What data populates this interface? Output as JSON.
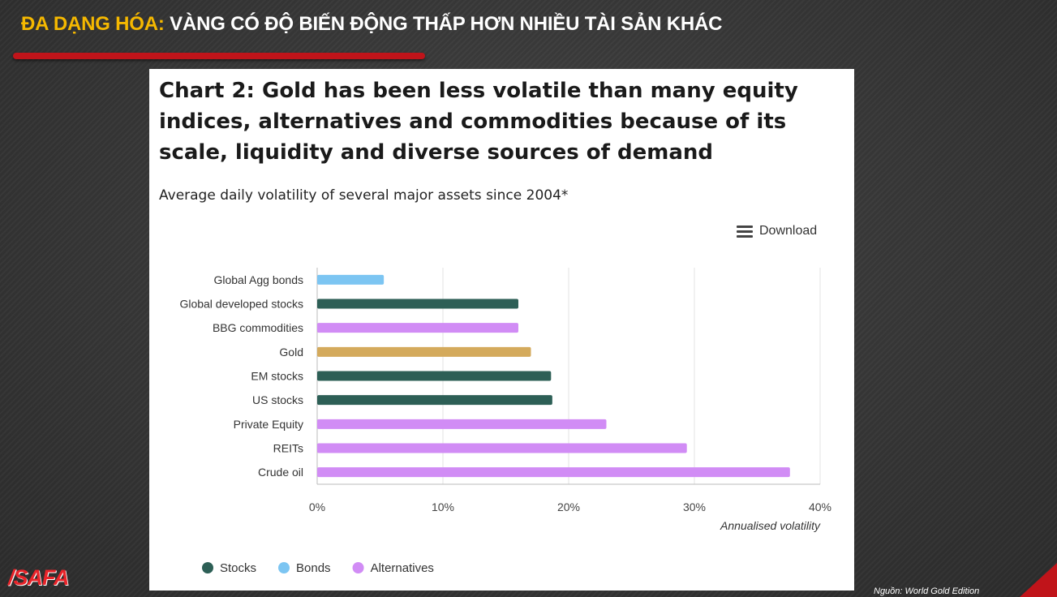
{
  "slide": {
    "title_accent": "ĐA DẠNG HÓA:",
    "title_rest": " VÀNG CÓ ĐỘ BIẾN ĐỘNG THẤP HƠN NHIỀU TÀI SẢN KHÁC",
    "logo_text": "SAFA",
    "source_text": "Nguồn: World Gold Edition",
    "colors": {
      "title_accent": "#f5b800",
      "rule": "#c0141a"
    }
  },
  "panel": {
    "download_label": "Download",
    "download_icon": "hamburger-menu-icon"
  },
  "chart_data": {
    "type": "bar",
    "orientation": "horizontal",
    "title": "Chart 2: Gold has been less volatile than many equity indices, alternatives and commodities because of its scale, liquidity and diverse sources of demand",
    "subtitle": "Average daily volatility of several major assets since 2004*",
    "xlabel": "Annualised volatility",
    "ylabel": "",
    "xlim": [
      0,
      40
    ],
    "x_ticks": [
      "0%",
      "10%",
      "20%",
      "30%",
      "40%"
    ],
    "x_tick_values": [
      0,
      10,
      20,
      30,
      40
    ],
    "grid": true,
    "legend_position": "bottom-left",
    "categories": [
      "Global Agg bonds",
      "Global developed stocks",
      "BBG commodities",
      "Gold",
      "EM stocks",
      "US stocks",
      "Private Equity",
      "REITs",
      "Crude oil"
    ],
    "values": [
      5.3,
      16.0,
      16.0,
      17.0,
      18.6,
      18.7,
      23.0,
      29.4,
      37.6
    ],
    "bar_groups": [
      "Bonds",
      "Stocks",
      "Alternatives",
      "Gold",
      "Stocks",
      "Stocks",
      "Alternatives",
      "Alternatives",
      "Alternatives"
    ],
    "legend": [
      {
        "name": "Stocks",
        "color": "#2d5f56"
      },
      {
        "name": "Bonds",
        "color": "#7cc5f2"
      },
      {
        "name": "Alternatives",
        "color": "#d18cf5"
      }
    ],
    "group_colors": {
      "Stocks": "#2d5f56",
      "Bonds": "#7cc5f2",
      "Alternatives": "#d18cf5",
      "Gold": "#d4aa5c"
    }
  }
}
